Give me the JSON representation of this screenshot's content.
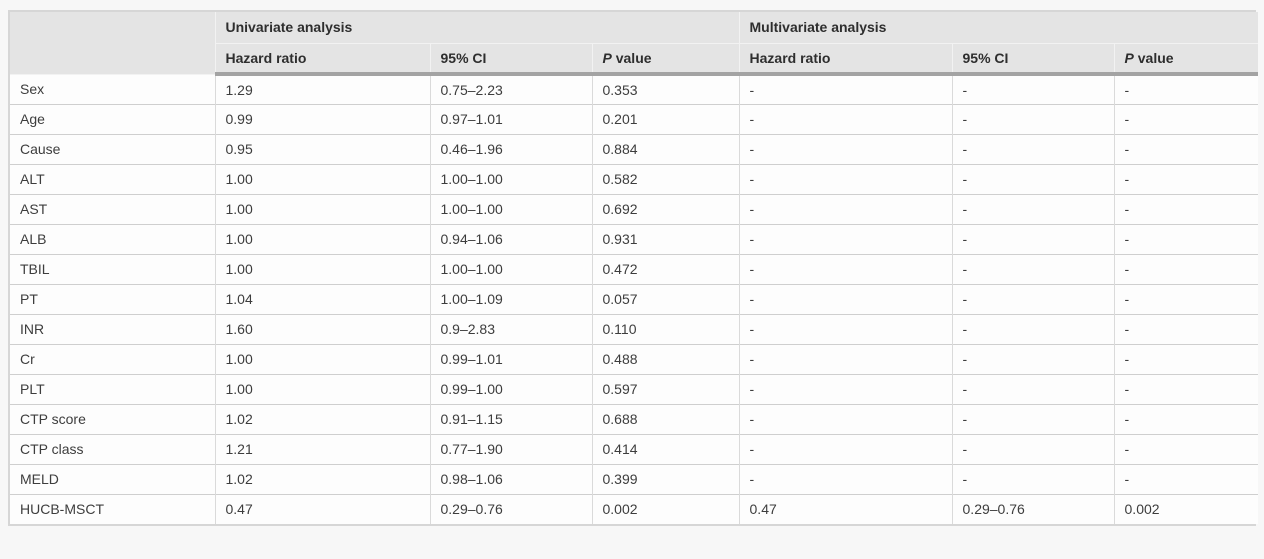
{
  "page": {
    "background": "#f7f7f7"
  },
  "table": {
    "corner_label": "",
    "column_groups": [
      {
        "label": "Univariate analysis"
      },
      {
        "label": "Multivariate analysis"
      }
    ],
    "sub_headers": {
      "hazard_ratio": "Hazard ratio",
      "ci": "95% CI",
      "p_value_italic_part": "P",
      "p_value_normal_part": " value"
    },
    "rows": [
      {
        "variable": "Sex",
        "values": [
          "1.29",
          "0.75–2.23",
          "0.353",
          "-",
          "-",
          "-"
        ]
      },
      {
        "variable": "Age",
        "values": [
          "0.99",
          "0.97–1.01",
          "0.201",
          "-",
          "-",
          "-"
        ]
      },
      {
        "variable": "Cause",
        "values": [
          "0.95",
          "0.46–1.96",
          "0.884",
          "-",
          "-",
          "-"
        ]
      },
      {
        "variable": "ALT",
        "values": [
          "1.00",
          "1.00–1.00",
          "0.582",
          "-",
          "-",
          "-"
        ]
      },
      {
        "variable": "AST",
        "values": [
          "1.00",
          "1.00–1.00",
          "0.692",
          "-",
          "-",
          "-"
        ]
      },
      {
        "variable": "ALB",
        "values": [
          "1.00",
          "0.94–1.06",
          "0.931",
          "-",
          "-",
          "-"
        ]
      },
      {
        "variable": "TBIL",
        "values": [
          "1.00",
          "1.00–1.00",
          "0.472",
          "-",
          "-",
          "-"
        ]
      },
      {
        "variable": "PT",
        "values": [
          "1.04",
          "1.00–1.09",
          "0.057",
          "-",
          "-",
          "-"
        ]
      },
      {
        "variable": "INR",
        "values": [
          "1.60",
          "0.9–2.83",
          "0.110",
          "-",
          "-",
          "-"
        ]
      },
      {
        "variable": "Cr",
        "values": [
          "1.00",
          "0.99–1.01",
          "0.488",
          "-",
          "-",
          "-"
        ]
      },
      {
        "variable": "PLT",
        "values": [
          "1.00",
          "0.99–1.00",
          "0.597",
          "-",
          "-",
          "-"
        ]
      },
      {
        "variable": "CTP score",
        "values": [
          "1.02",
          "0.91–1.15",
          "0.688",
          "-",
          "-",
          "-"
        ]
      },
      {
        "variable": "CTP class",
        "values": [
          "1.21",
          "0.77–1.90",
          "0.414",
          "-",
          "-",
          "-"
        ]
      },
      {
        "variable": "MELD",
        "values": [
          "1.02",
          "0.98–1.06",
          "0.399",
          "-",
          "-",
          "-"
        ]
      },
      {
        "variable": "HUCB-MSCT",
        "values": [
          "0.47",
          "0.29–0.76",
          "0.002",
          "0.47",
          "0.29–0.76",
          "0.002"
        ]
      }
    ],
    "colors": {
      "header_bg": "#e4e4e4",
      "header_divider": "#f2f2f2",
      "thick_rule": "#a3a3a3",
      "row_line": "#cfcfcf",
      "column_line": "#dadada",
      "body_bg": "#fdfdfd",
      "outer_border": "#d6d6d6",
      "text": "#3d3d3d",
      "page_bg": "#f7f7f7"
    }
  }
}
